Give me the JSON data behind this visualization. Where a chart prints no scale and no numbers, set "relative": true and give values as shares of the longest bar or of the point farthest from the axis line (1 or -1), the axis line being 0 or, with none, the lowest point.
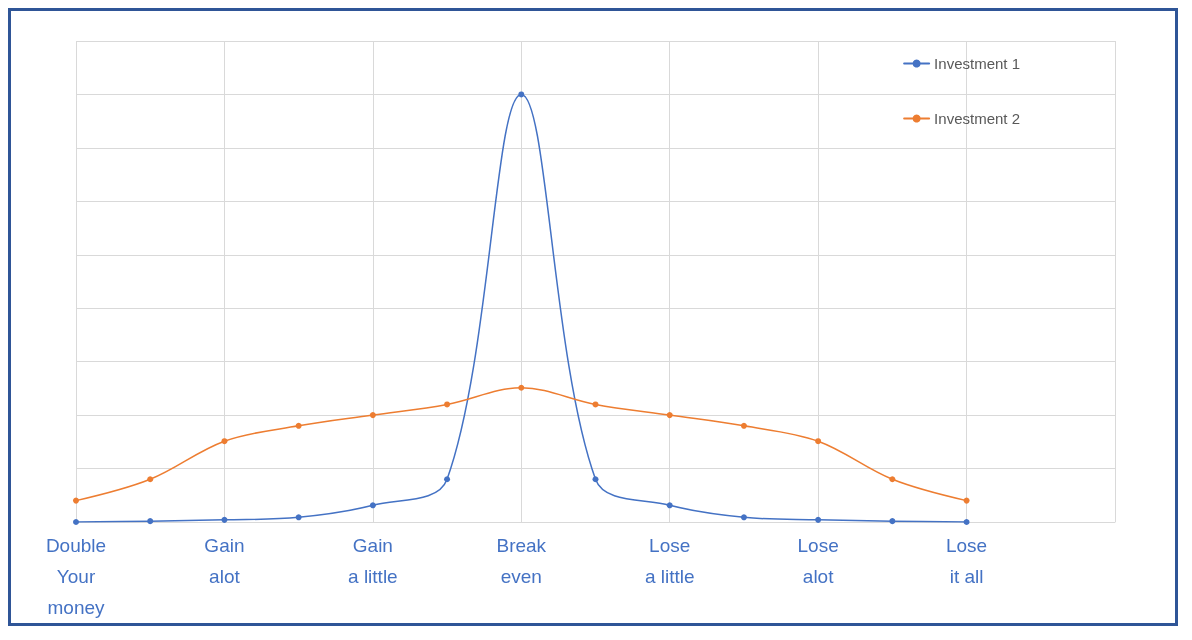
{
  "chart_data": {
    "type": "line",
    "relative": true,
    "categories": [
      "Double\nYour\nmoney",
      null,
      "Gain\nalot",
      null,
      "Gain\na little",
      null,
      "Break\neven",
      null,
      "Lose\na little",
      null,
      "Lose\nalot",
      null,
      "Lose\nit all",
      null,
      null
    ],
    "series": [
      {
        "name": "Investment 1",
        "color": "#4472c4",
        "values": [
          0,
          0.002,
          0.005,
          0.011,
          0.039,
          0.1,
          1,
          0.1,
          0.039,
          0.011,
          0.005,
          0.002,
          0,
          null,
          null
        ]
      },
      {
        "name": "Investment 2",
        "color": "#ed7d31",
        "values": [
          0.05,
          0.1,
          0.189,
          0.225,
          0.25,
          0.275,
          0.314,
          0.275,
          0.25,
          0.225,
          0.189,
          0.1,
          0.05,
          null,
          null
        ]
      }
    ],
    "grid": true,
    "legend": "top right",
    "marker": "circle",
    "line_style": "solid"
  }
}
